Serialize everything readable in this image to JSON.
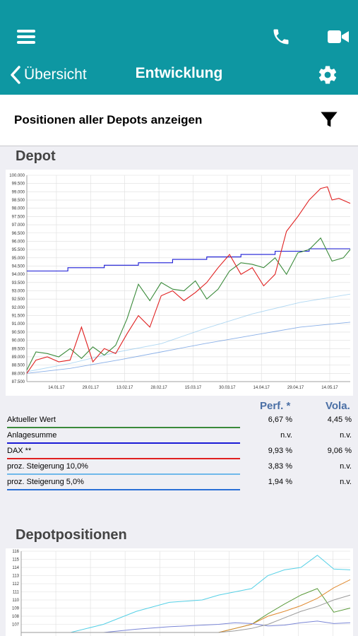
{
  "header": {
    "title": "Entwicklung",
    "back_label": "Übersicht"
  },
  "filter": {
    "label": "Positionen aller Depots anzeigen"
  },
  "depot": {
    "title": "Depot"
  },
  "legend": {
    "perf_header": "Perf. *",
    "vola_header": "Vola.",
    "rows": [
      {
        "name": "Aktueller Wert",
        "perf": "6,67 %",
        "vola": "4,45 %",
        "color": "#3a8a3a"
      },
      {
        "name": "Anlagesumme",
        "perf": "n.v.",
        "vola": "n.v.",
        "color": "#1a1ad6"
      },
      {
        "name": "DAX **",
        "perf": "9,93 %",
        "vola": "9,06 %",
        "color": "#e02020"
      },
      {
        "name": "proz. Steigerung 10,0%",
        "perf": "3,83 %",
        "vola": "n.v.",
        "color": "#6fb8ea"
      },
      {
        "name": "proz. Steigerung 5,0%",
        "perf": "1,94 %",
        "vola": "n.v.",
        "color": "#2a6fd6"
      }
    ]
  },
  "positions": {
    "title": "Depotpositionen"
  },
  "chart_data": [
    {
      "type": "line",
      "title": "",
      "xlabel": "",
      "ylabel": "",
      "ylim": [
        87500,
        100000
      ],
      "y_ticks": [
        "87.500",
        "88.000",
        "88.500",
        "89.000",
        "89.500",
        "90.000",
        "90.500",
        "91.000",
        "91.500",
        "92.000",
        "92.500",
        "93.000",
        "93.500",
        "94.000",
        "94.500",
        "95.000",
        "95.500",
        "96.000",
        "96.500",
        "97.000",
        "97.500",
        "98.000",
        "98.500",
        "99.000",
        "99.500",
        "100.000"
      ],
      "x_ticks": [
        "14.01.17",
        "29.01.17",
        "13.02.17",
        "28.02.17",
        "15.03.17",
        "30.03.17",
        "14.04.17",
        "29.04.17",
        "14.05.17"
      ],
      "x_range": [
        "2017-01-01",
        "2017-05-23"
      ],
      "grid": true,
      "series": [
        {
          "name": "Aktueller Wert",
          "color": "#3a8a3a",
          "x": [
            "2017-01-01",
            "2017-01-05",
            "2017-01-10",
            "2017-01-15",
            "2017-01-20",
            "2017-01-25",
            "2017-01-30",
            "2017-02-04",
            "2017-02-09",
            "2017-02-14",
            "2017-02-19",
            "2017-02-24",
            "2017-03-01",
            "2017-03-06",
            "2017-03-11",
            "2017-03-16",
            "2017-03-21",
            "2017-03-26",
            "2017-03-31",
            "2017-04-05",
            "2017-04-10",
            "2017-04-15",
            "2017-04-20",
            "2017-04-25",
            "2017-04-30",
            "2017-05-05",
            "2017-05-10",
            "2017-05-15",
            "2017-05-20",
            "2017-05-23"
          ],
          "y": [
            88200,
            89300,
            89200,
            89000,
            89500,
            88900,
            89600,
            89100,
            89700,
            91300,
            93400,
            92400,
            93500,
            93100,
            93000,
            93600,
            92500,
            93100,
            94200,
            94700,
            94600,
            94400,
            95000,
            94000,
            95300,
            95500,
            96200,
            94800,
            95000,
            95500
          ]
        },
        {
          "name": "Anlagesumme",
          "color": "#1a1ad6",
          "x": [
            "2017-01-01",
            "2017-01-19",
            "2017-01-19",
            "2017-02-04",
            "2017-02-04",
            "2017-02-19",
            "2017-02-19",
            "2017-03-06",
            "2017-03-06",
            "2017-03-21",
            "2017-03-21",
            "2017-04-05",
            "2017-04-05",
            "2017-04-20",
            "2017-04-20",
            "2017-05-05",
            "2017-05-05",
            "2017-05-23"
          ],
          "y": [
            94200,
            94200,
            94400,
            94400,
            94550,
            94550,
            94700,
            94700,
            94900,
            94900,
            95050,
            95050,
            95200,
            95200,
            95400,
            95400,
            95550,
            95550
          ]
        },
        {
          "name": "DAX **",
          "color": "#e02020",
          "x": [
            "2017-01-01",
            "2017-01-05",
            "2017-01-10",
            "2017-01-15",
            "2017-01-20",
            "2017-01-25",
            "2017-01-30",
            "2017-02-04",
            "2017-02-09",
            "2017-02-14",
            "2017-02-19",
            "2017-02-24",
            "2017-03-01",
            "2017-03-06",
            "2017-03-11",
            "2017-03-16",
            "2017-03-21",
            "2017-03-26",
            "2017-03-31",
            "2017-04-05",
            "2017-04-10",
            "2017-04-15",
            "2017-04-20",
            "2017-04-25",
            "2017-04-30",
            "2017-05-05",
            "2017-05-10",
            "2017-05-13",
            "2017-05-15",
            "2017-05-18",
            "2017-05-23"
          ],
          "y": [
            88000,
            88800,
            89000,
            88700,
            88800,
            90800,
            88700,
            89500,
            89200,
            90400,
            91500,
            90800,
            92700,
            93000,
            92400,
            92900,
            93500,
            94400,
            95200,
            94000,
            94400,
            93300,
            94000,
            96600,
            97500,
            98500,
            99200,
            99300,
            98500,
            98600,
            98300
          ]
        },
        {
          "name": "proz. Steigerung 10,0%",
          "color": "#6fb8ea",
          "x": [
            "2017-01-01",
            "2017-01-20",
            "2017-02-10",
            "2017-03-01",
            "2017-03-20",
            "2017-04-10",
            "2017-05-01",
            "2017-05-23"
          ],
          "y": [
            88100,
            88600,
            89300,
            89800,
            90700,
            91600,
            92300,
            92800
          ]
        },
        {
          "name": "proz. Steigerung 5,0%",
          "color": "#2a6fd6",
          "x": [
            "2017-01-01",
            "2017-01-20",
            "2017-02-10",
            "2017-03-01",
            "2017-03-20",
            "2017-04-10",
            "2017-05-01",
            "2017-05-23"
          ],
          "y": [
            88000,
            88300,
            88800,
            89300,
            89800,
            90300,
            90800,
            91100
          ]
        }
      ]
    },
    {
      "type": "line",
      "title": "",
      "xlabel": "",
      "ylabel": "",
      "ylim": [
        106,
        116
      ],
      "y_ticks": [
        "107",
        "108",
        "109",
        "110",
        "111",
        "112",
        "113",
        "114",
        "115",
        "116"
      ],
      "grid": true,
      "series": [
        {
          "color": "#55d0e6",
          "x": [
            0,
            3,
            5,
            7,
            9,
            11,
            12,
            13,
            14,
            15,
            16,
            17,
            18,
            19,
            20
          ],
          "y": [
            106,
            106,
            107,
            108.6,
            109.7,
            110,
            110.6,
            111,
            111.4,
            113,
            113.7,
            114,
            115.5,
            113.8,
            113.7
          ]
        },
        {
          "color": "#5a9a3a",
          "x": [
            0,
            3,
            5,
            7,
            9,
            11,
            12,
            13,
            14,
            15,
            16,
            17,
            18,
            19,
            20
          ],
          "y": [
            106,
            106,
            106,
            106,
            106,
            106,
            106,
            106.5,
            107,
            108.3,
            109.5,
            110.6,
            111.4,
            108.5,
            109
          ]
        },
        {
          "color": "#e08a30",
          "x": [
            0,
            3,
            5,
            7,
            9,
            11,
            12,
            13,
            14,
            15,
            16,
            17,
            18,
            19,
            20
          ],
          "y": [
            106,
            106,
            106,
            106,
            106,
            106,
            106,
            106.5,
            107,
            108,
            108.6,
            109.3,
            110.2,
            111.5,
            112.5
          ]
        },
        {
          "color": "#7a86d6",
          "x": [
            0,
            3,
            5,
            7,
            9,
            11,
            12,
            13,
            14,
            15,
            16,
            17,
            18,
            19,
            20
          ],
          "y": [
            106,
            106,
            106,
            106.4,
            106.7,
            106.9,
            107,
            107.2,
            107.1,
            106.8,
            106.9,
            107.2,
            107.4,
            107.1,
            107.2
          ]
        },
        {
          "color": "#9a9a9a",
          "x": [
            0,
            3,
            5,
            7,
            9,
            11,
            12,
            13,
            14,
            15,
            16,
            17,
            18,
            19,
            20
          ],
          "y": [
            106,
            106,
            106,
            106,
            106,
            106,
            106,
            106.2,
            106.5,
            107,
            107.8,
            108.6,
            109.2,
            110,
            110.6
          ]
        }
      ]
    }
  ]
}
